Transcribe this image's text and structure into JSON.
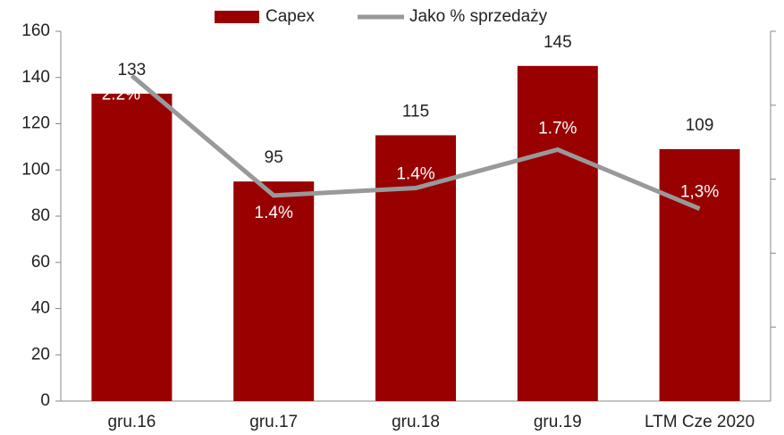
{
  "chart_data": {
    "type": "bar_line",
    "categories": [
      "gru.16",
      "gru.17",
      "gru.18",
      "gru.19",
      "LTM Cze 2020"
    ],
    "series": [
      {
        "name": "Capex",
        "type": "bar",
        "color": "#990000",
        "values": [
          133,
          95,
          115,
          145,
          109
        ]
      },
      {
        "name": "Jako % sprzedaży",
        "type": "line",
        "axis": "y2",
        "color": "#999999",
        "values": [
          2.2,
          1.39,
          1.44,
          1.7,
          1.3
        ],
        "value_labels": [
          "2.2%",
          "1.4%",
          "1.4%",
          "1.7%",
          "1,3%"
        ]
      }
    ],
    "ylim": [
      0,
      160
    ],
    "yticks": [
      0,
      20,
      40,
      60,
      80,
      100,
      120,
      140,
      160
    ],
    "y2lim": [
      0,
      2.5
    ],
    "y2ticks": [
      0.5,
      1,
      1.5,
      2,
      2.5
    ],
    "y2ticklabels": false,
    "legend": "top"
  }
}
